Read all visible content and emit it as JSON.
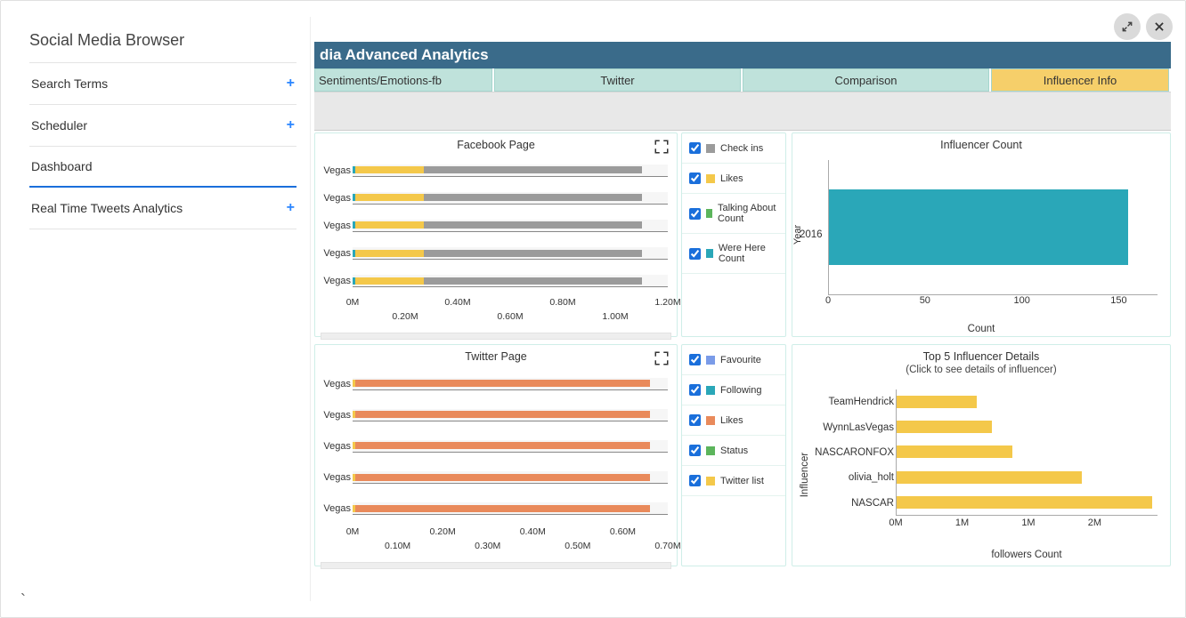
{
  "sidebar": {
    "title": "Social Media Browser",
    "items": [
      {
        "label": "Search Terms",
        "expandable": true,
        "active": false
      },
      {
        "label": "Scheduler",
        "expandable": true,
        "active": false
      },
      {
        "label": "Dashboard",
        "expandable": false,
        "active": true
      },
      {
        "label": "Real Time Tweets Analytics",
        "expandable": true,
        "active": false
      }
    ]
  },
  "header": {
    "title_fragment": "dia Advanced Analytics"
  },
  "tabs": [
    {
      "label": "Sentiments/Emotions-fb",
      "active": false
    },
    {
      "label": "Twitter",
      "active": false
    },
    {
      "label": "Comparison",
      "active": false
    },
    {
      "label": "Influencer Info",
      "active": true
    }
  ],
  "colors": {
    "header_bg": "#3a6b8a",
    "tab_bg": "#bfe2db",
    "tab_active_bg": "#f6cf6a",
    "grid": "#888888",
    "panel_border": "#cfeee8",
    "teal": "#2aa7b8",
    "yellow": "#f4c84a",
    "orange": "#e98a5b",
    "blue": "#7a9be8",
    "grey": "#9b9b9b",
    "green": "#5cb55c"
  },
  "fb_chart": {
    "title": "Facebook Page",
    "type": "stacked-horizontal-bar",
    "x_min": 0,
    "x_max": 1.2,
    "x_unit": "M",
    "x_ticks_top": [
      0,
      0.4,
      0.8,
      1.2
    ],
    "x_ticks_bottom": [
      0.2,
      0.6,
      1.0
    ],
    "categories": [
      "Vegas",
      "Vegas",
      "Vegas",
      "Vegas",
      "Vegas"
    ],
    "series": [
      {
        "name": "Check ins",
        "color": "#9b9b9b",
        "values": [
          1.1,
          1.1,
          1.1,
          1.1,
          1.1
        ]
      },
      {
        "name": "Likes",
        "color": "#f4c84a",
        "values": [
          0.27,
          0.27,
          0.27,
          0.27,
          0.27
        ]
      },
      {
        "name": "Talking About Count",
        "color": "#5cb55c",
        "values": [
          0.01,
          0.01,
          0.01,
          0.01,
          0.01
        ]
      },
      {
        "name": "Were Here Count",
        "color": "#2aa7b8",
        "values": [
          0.01,
          0.01,
          0.01,
          0.01,
          0.01
        ]
      }
    ]
  },
  "fb_legend": [
    {
      "label": "Check ins",
      "color": "#9b9b9b",
      "checked": true
    },
    {
      "label": "Likes",
      "color": "#f4c84a",
      "checked": true
    },
    {
      "label": "Talking About Count",
      "color": "#5cb55c",
      "checked": true
    },
    {
      "label": "Were Here Count",
      "color": "#2aa7b8",
      "checked": true
    }
  ],
  "tw_chart": {
    "title": "Twitter Page",
    "type": "stacked-horizontal-bar",
    "x_min": 0,
    "x_max": 0.7,
    "x_unit": "M",
    "x_ticks_top": [
      0,
      0.2,
      0.4,
      0.6
    ],
    "x_ticks_bottom": [
      0.1,
      0.3,
      0.5,
      0.7
    ],
    "categories": [
      "Vegas",
      "Vegas",
      "Vegas",
      "Vegas",
      "Vegas"
    ],
    "series": [
      {
        "name": "Favourite",
        "color": "#7a9be8",
        "values": [
          0.005,
          0.005,
          0.005,
          0.005,
          0.005
        ]
      },
      {
        "name": "Following",
        "color": "#2aa7b8",
        "values": [
          0.005,
          0.005,
          0.005,
          0.005,
          0.005
        ]
      },
      {
        "name": "Likes",
        "color": "#e98a5b",
        "values": [
          0.66,
          0.66,
          0.66,
          0.66,
          0.66
        ]
      },
      {
        "name": "Status",
        "color": "#5cb55c",
        "values": [
          0.005,
          0.005,
          0.005,
          0.005,
          0.005
        ]
      },
      {
        "name": "Twitter list",
        "color": "#f4c84a",
        "values": [
          0.005,
          0.005,
          0.005,
          0.005,
          0.005
        ]
      }
    ]
  },
  "tw_legend": [
    {
      "label": "Favourite",
      "color": "#7a9be8",
      "checked": true
    },
    {
      "label": "Following",
      "color": "#2aa7b8",
      "checked": true
    },
    {
      "label": "Likes",
      "color": "#e98a5b",
      "checked": true
    },
    {
      "label": "Status",
      "color": "#5cb55c",
      "checked": true
    },
    {
      "label": "Twitter list",
      "color": "#f4c84a",
      "checked": true
    }
  ],
  "influencer_count": {
    "title": "Influencer Count",
    "type": "horizontal-bar",
    "y_label": "Year",
    "x_label": "Count",
    "x_min": 0,
    "x_max": 170,
    "x_ticks": [
      0,
      50,
      100,
      150
    ],
    "categories": [
      "2016"
    ],
    "values": [
      155
    ],
    "bar_color": "#2aa7b8"
  },
  "top5": {
    "title": "Top 5 Influencer Details",
    "subtitle": "(Click to see details of influencer)",
    "type": "horizontal-bar",
    "y_label": "Influencer",
    "x_label": "followers Count",
    "x_min": 0,
    "x_max": 2.6,
    "x_unit": "M",
    "x_ticks": [
      0,
      1,
      1,
      2
    ],
    "bar_color": "#f4c84a",
    "items": [
      {
        "name": "TeamHendrick",
        "value": 0.8
      },
      {
        "name": "WynnLasVegas",
        "value": 0.95
      },
      {
        "name": "NASCARONFOX",
        "value": 1.15
      },
      {
        "name": "olivia_holt",
        "value": 1.85
      },
      {
        "name": "NASCAR",
        "value": 2.55
      }
    ]
  }
}
